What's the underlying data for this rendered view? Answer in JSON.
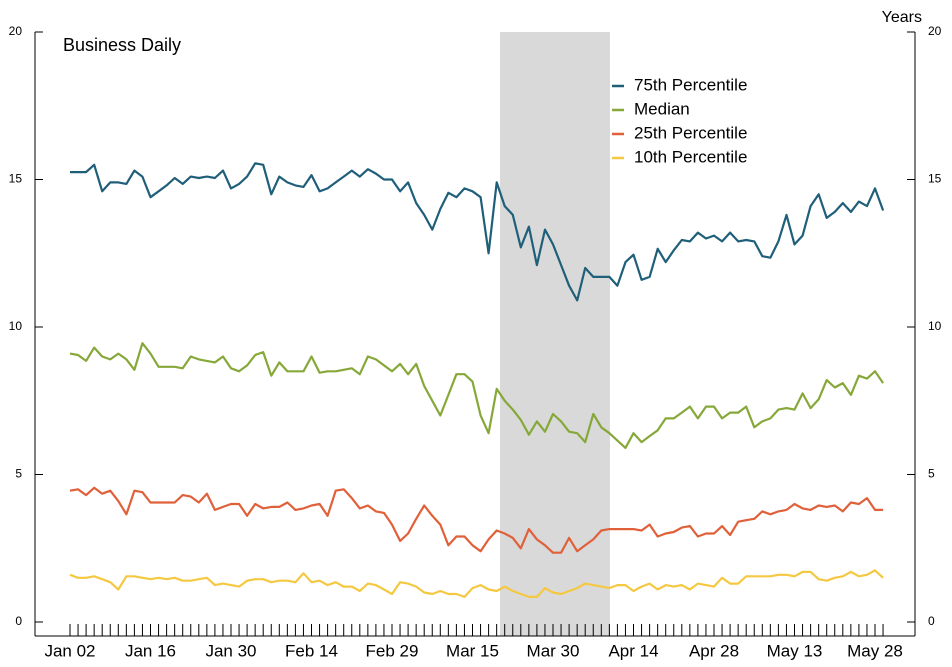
{
  "chart_data": {
    "type": "line",
    "title": "Business Daily",
    "y_label": "Years",
    "categories": [
      "Jan 02",
      null,
      null,
      null,
      null,
      null,
      null,
      null,
      null,
      null,
      "Jan 16",
      null,
      null,
      null,
      null,
      null,
      null,
      null,
      null,
      null,
      "Jan 30",
      null,
      null,
      null,
      null,
      null,
      null,
      null,
      null,
      null,
      "Feb 14",
      null,
      null,
      null,
      null,
      null,
      null,
      null,
      null,
      null,
      "Feb 29",
      null,
      null,
      null,
      null,
      null,
      null,
      null,
      null,
      null,
      "Mar 15",
      null,
      null,
      null,
      null,
      null,
      null,
      null,
      null,
      null,
      "Mar 30",
      null,
      null,
      null,
      null,
      null,
      null,
      null,
      null,
      null,
      "Apr 14",
      null,
      null,
      null,
      null,
      null,
      null,
      null,
      null,
      null,
      "Apr 28",
      null,
      null,
      null,
      null,
      null,
      null,
      null,
      null,
      null,
      "May 13",
      null,
      null,
      null,
      null,
      null,
      null,
      null,
      null,
      null,
      "May 28",
      null
    ],
    "series": [
      {
        "name": "75th Percentile",
        "color": "#1f5f7a",
        "values": [
          15.25,
          15.25,
          15.25,
          15.5,
          14.6,
          14.9,
          14.9,
          14.85,
          15.3,
          15.1,
          14.4,
          14.6,
          14.8,
          15.05,
          14.85,
          15.1,
          15.05,
          15.1,
          15.05,
          15.3,
          14.7,
          14.85,
          15.1,
          15.55,
          15.5,
          14.5,
          15.1,
          14.9,
          14.8,
          14.75,
          15.15,
          14.6,
          14.7,
          14.9,
          15.1,
          15.3,
          15.1,
          15.35,
          15.2,
          15.0,
          15.0,
          14.6,
          14.9,
          14.2,
          13.8,
          13.3,
          14.0,
          14.55,
          14.4,
          14.7,
          14.6,
          14.4,
          12.5,
          14.9,
          14.1,
          13.8,
          12.7,
          13.4,
          12.1,
          13.3,
          12.8,
          12.1,
          11.4,
          10.9,
          12.0,
          11.7,
          11.7,
          11.7,
          11.4,
          12.2,
          12.45,
          11.6,
          11.7,
          12.65,
          12.2,
          12.6,
          12.95,
          12.9,
          13.2,
          13.0,
          13.1,
          12.9,
          13.2,
          12.9,
          12.95,
          12.9,
          12.4,
          12.35,
          12.9,
          13.8,
          12.8,
          13.1,
          14.1,
          14.5,
          13.7,
          13.9,
          14.2,
          13.9,
          14.25,
          14.1,
          14.7,
          13.95
        ]
      },
      {
        "name": "Median",
        "color": "#86a839",
        "values": [
          9.1,
          9.05,
          8.85,
          9.3,
          9.0,
          8.9,
          9.1,
          8.9,
          8.55,
          9.45,
          9.1,
          8.65,
          8.65,
          8.65,
          8.6,
          9.0,
          8.9,
          8.85,
          8.8,
          9.0,
          8.6,
          8.5,
          8.7,
          9.05,
          9.15,
          8.35,
          8.8,
          8.5,
          8.5,
          8.5,
          9.0,
          8.45,
          8.5,
          8.5,
          8.55,
          8.6,
          8.4,
          9.0,
          8.9,
          8.7,
          8.5,
          8.75,
          8.4,
          8.75,
          8.0,
          7.5,
          7.0,
          7.7,
          8.4,
          8.4,
          8.15,
          7.0,
          6.4,
          7.9,
          7.5,
          7.2,
          6.85,
          6.35,
          6.8,
          6.45,
          7.05,
          6.8,
          6.45,
          6.4,
          6.1,
          7.05,
          6.6,
          6.4,
          6.15,
          5.9,
          6.4,
          6.1,
          6.3,
          6.5,
          6.9,
          6.9,
          7.1,
          7.3,
          6.9,
          7.3,
          7.3,
          6.9,
          7.1,
          7.1,
          7.3,
          6.6,
          6.8,
          6.9,
          7.2,
          7.25,
          7.2,
          7.75,
          7.25,
          7.55,
          8.2,
          7.95,
          8.1,
          7.7,
          8.35,
          8.25,
          8.5,
          8.1
        ]
      },
      {
        "name": "25th Percentile",
        "color": "#e0603a",
        "values": [
          4.45,
          4.5,
          4.3,
          4.55,
          4.35,
          4.45,
          4.1,
          3.65,
          4.45,
          4.4,
          4.05,
          4.05,
          4.05,
          4.05,
          4.3,
          4.25,
          4.05,
          4.35,
          3.8,
          3.9,
          4.0,
          4.0,
          3.6,
          4.0,
          3.85,
          3.9,
          3.9,
          4.05,
          3.8,
          3.85,
          3.95,
          4.0,
          3.6,
          4.45,
          4.5,
          4.2,
          3.85,
          3.95,
          3.75,
          3.7,
          3.3,
          2.75,
          3.0,
          3.5,
          3.95,
          3.6,
          3.3,
          2.6,
          2.9,
          2.9,
          2.6,
          2.4,
          2.8,
          3.1,
          3.0,
          2.85,
          2.5,
          3.15,
          2.8,
          2.6,
          2.35,
          2.35,
          2.85,
          2.4,
          2.6,
          2.8,
          3.1,
          3.15,
          3.15,
          3.15,
          3.15,
          3.1,
          3.3,
          2.9,
          3.0,
          3.05,
          3.2,
          3.25,
          2.9,
          3.0,
          3.0,
          3.25,
          2.95,
          3.4,
          3.45,
          3.5,
          3.75,
          3.65,
          3.75,
          3.8,
          4.0,
          3.85,
          3.8,
          3.95,
          3.9,
          3.95,
          3.75,
          4.05,
          4.0,
          4.2,
          3.8,
          3.8
        ]
      },
      {
        "name": "10th Percentile",
        "color": "#f5c842",
        "values": [
          1.6,
          1.5,
          1.5,
          1.55,
          1.45,
          1.35,
          1.1,
          1.55,
          1.55,
          1.5,
          1.45,
          1.5,
          1.45,
          1.5,
          1.4,
          1.4,
          1.45,
          1.5,
          1.25,
          1.3,
          1.25,
          1.2,
          1.4,
          1.45,
          1.45,
          1.35,
          1.4,
          1.4,
          1.35,
          1.65,
          1.35,
          1.4,
          1.25,
          1.35,
          1.2,
          1.2,
          1.05,
          1.3,
          1.25,
          1.1,
          0.95,
          1.35,
          1.3,
          1.2,
          1.0,
          0.95,
          1.05,
          0.95,
          0.95,
          0.85,
          1.15,
          1.25,
          1.1,
          1.05,
          1.2,
          1.05,
          0.95,
          0.85,
          0.85,
          1.15,
          1.0,
          0.95,
          1.05,
          1.15,
          1.3,
          1.25,
          1.2,
          1.15,
          1.25,
          1.25,
          1.05,
          1.2,
          1.3,
          1.1,
          1.25,
          1.2,
          1.25,
          1.1,
          1.3,
          1.25,
          1.2,
          1.5,
          1.3,
          1.3,
          1.55,
          1.55,
          1.55,
          1.55,
          1.6,
          1.6,
          1.55,
          1.7,
          1.7,
          1.45,
          1.4,
          1.5,
          1.55,
          1.7,
          1.55,
          1.6,
          1.75,
          1.5
        ]
      }
    ],
    "ylim": [
      0,
      20
    ],
    "yticks": [
      0,
      5,
      10,
      15,
      20
    ],
    "legend": "upper right"
  }
}
